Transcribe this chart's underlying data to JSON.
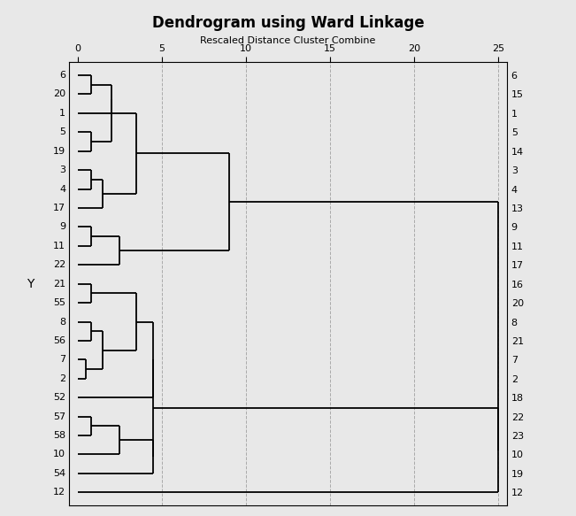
{
  "title": "Dendrogram using Ward Linkage",
  "subtitle": "Rescaled Distance Cluster Combine",
  "bg_color": "#e8e8e8",
  "line_color": "#000000",
  "grid_color": "#aaaaaa",
  "right_labels": [
    "6",
    "15",
    "1",
    "5",
    "14",
    "3",
    "4",
    "13",
    "9",
    "11",
    "17",
    "16",
    "20",
    "8",
    "21",
    "7",
    "2",
    "18",
    "22",
    "23",
    "10",
    "19",
    "12"
  ],
  "left_labels": [
    "6",
    "20",
    "1",
    "5",
    "19",
    "3",
    "4",
    "17",
    "9",
    "11",
    "22",
    "21",
    "55",
    "8",
    "56",
    "7",
    "2",
    "52",
    "57",
    "58",
    "10",
    "54",
    "12"
  ],
  "ylabel": "Y",
  "title_fontsize": 12,
  "subtitle_fontsize": 8,
  "tick_fontsize": 8,
  "label_fontsize": 8,
  "line_lw": 1.3
}
